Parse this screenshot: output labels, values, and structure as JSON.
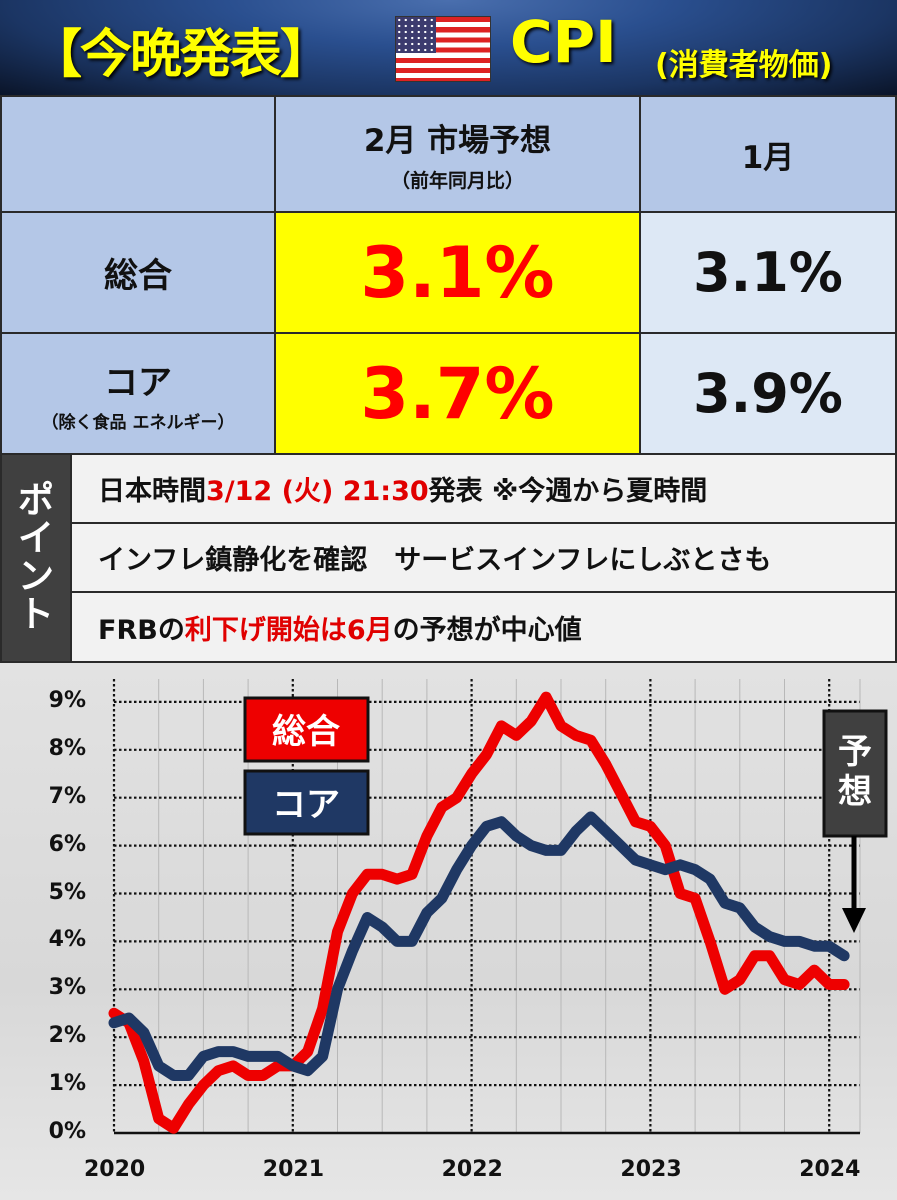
{
  "header": {
    "title": "【今晩発表】",
    "flag_icon": "us-flag-icon",
    "indicator": "CPI",
    "indicator_sub": "(消費者物価)"
  },
  "table": {
    "columns": [
      {
        "label": "",
        "sub": ""
      },
      {
        "label": "2月 市場予想",
        "sub": "（前年同月比）"
      },
      {
        "label": "1月",
        "sub": ""
      }
    ],
    "rows": [
      {
        "label": "総合",
        "sublabel": "",
        "forecast": "3.1%",
        "previous": "3.1%"
      },
      {
        "label": "コア",
        "sublabel": "（除く食品 エネルギー）",
        "forecast": "3.7%",
        "previous": "3.9%"
      }
    ],
    "colors": {
      "forecast_bg": "#ffff00",
      "forecast_text": "#ff0000",
      "header_bg": "#b4c7e7",
      "prev_bg": "#dde8f5"
    }
  },
  "points": {
    "tab_label": [
      "ポ",
      "イ",
      "ン",
      "ト"
    ],
    "items": [
      {
        "parts": [
          {
            "t": "日本時間 ",
            "red": false
          },
          {
            "t": "3/12 (火) 21:30",
            "red": true
          },
          {
            "t": "発表 ※今週から夏時間",
            "red": false
          }
        ]
      },
      {
        "parts": [
          {
            "t": "インフレ鎮静化を確認　サービスインフレにしぶとさも",
            "red": false
          }
        ]
      },
      {
        "parts": [
          {
            "t": "FRBの",
            "red": false
          },
          {
            "t": "利下げ開始は6月",
            "red": true
          },
          {
            "t": "の予想が中心値",
            "red": false
          }
        ]
      }
    ]
  },
  "chart_data": {
    "type": "line",
    "title": "",
    "xlabel": "",
    "ylabel": "",
    "ylim": [
      0,
      9
    ],
    "y_ticks": [
      "0%",
      "1%",
      "2%",
      "3%",
      "4%",
      "5%",
      "6%",
      "7%",
      "8%",
      "9%"
    ],
    "x_ticks": [
      "2020",
      "2021",
      "2022",
      "2023",
      "2024"
    ],
    "x_start": "2020-01",
    "x_end": "2024-02",
    "grid": true,
    "legend": [
      {
        "label": "総合",
        "color": "#ee0000"
      },
      {
        "label": "コア",
        "color": "#1f3864"
      }
    ],
    "annotation": {
      "label": "予想",
      "target": "2024-02 forecast"
    },
    "series": [
      {
        "name": "総合",
        "color": "#ee0000",
        "values": [
          2.5,
          2.3,
          1.5,
          0.3,
          0.1,
          0.6,
          1.0,
          1.3,
          1.4,
          1.2,
          1.2,
          1.4,
          1.4,
          1.7,
          2.6,
          4.2,
          5.0,
          5.4,
          5.4,
          5.3,
          5.4,
          6.2,
          6.8,
          7.0,
          7.5,
          7.9,
          8.5,
          8.3,
          8.6,
          9.1,
          8.5,
          8.3,
          8.2,
          7.7,
          7.1,
          6.5,
          6.4,
          6.0,
          5.0,
          4.9,
          4.0,
          3.0,
          3.2,
          3.7,
          3.7,
          3.2,
          3.1,
          3.4,
          3.1,
          3.1
        ],
        "note": "last point = Feb 2024 forecast 3.1%"
      },
      {
        "name": "コア",
        "color": "#1f3864",
        "values": [
          2.3,
          2.4,
          2.1,
          1.4,
          1.2,
          1.2,
          1.6,
          1.7,
          1.7,
          1.6,
          1.6,
          1.6,
          1.4,
          1.3,
          1.6,
          3.0,
          3.8,
          4.5,
          4.3,
          4.0,
          4.0,
          4.6,
          4.9,
          5.5,
          6.0,
          6.4,
          6.5,
          6.2,
          6.0,
          5.9,
          5.9,
          6.3,
          6.6,
          6.3,
          6.0,
          5.7,
          5.6,
          5.5,
          5.6,
          5.5,
          5.3,
          4.8,
          4.7,
          4.3,
          4.1,
          4.0,
          4.0,
          3.9,
          3.9,
          3.7
        ],
        "note": "last point = Feb 2024 forecast 3.7%"
      }
    ]
  }
}
